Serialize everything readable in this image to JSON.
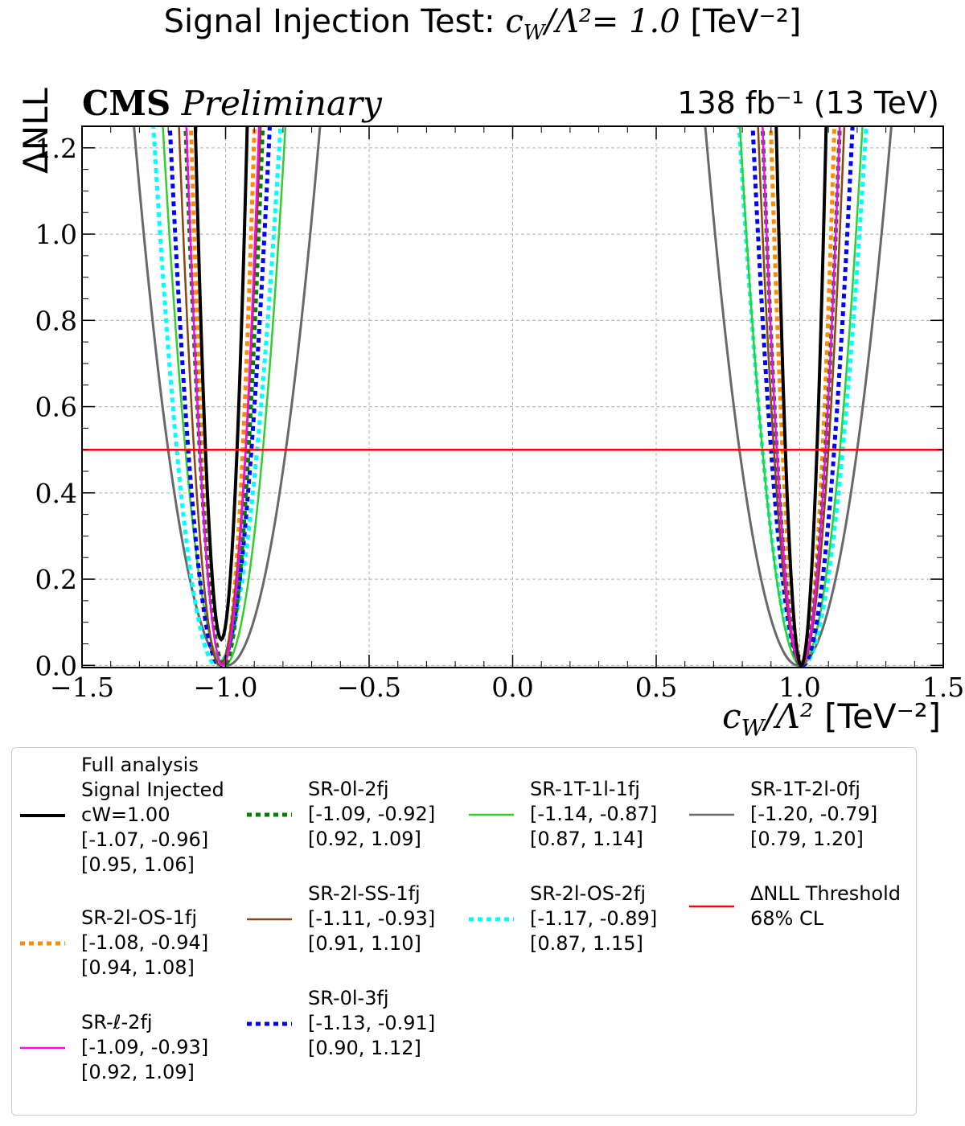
{
  "title": {
    "prefix": "Signal Injection Test: ",
    "math": "c",
    "math_sub": "W",
    "math_rest": "/Λ²= 1.0",
    "unit": " [TeV⁻²]"
  },
  "experiment": {
    "bold": "CMS",
    "italic": "Preliminary"
  },
  "luminosity": "138 fb⁻¹ (13 TeV)",
  "chart_data": {
    "type": "line",
    "xlabel": "c_W/Λ² [TeV⁻²]",
    "ylabel": "ΔNLL",
    "xlim": [
      -1.5,
      1.5
    ],
    "ylim": [
      -0.005,
      1.25
    ],
    "xticks": [
      "−1.5",
      "−1.0",
      "−0.5",
      "0.0",
      "0.5",
      "1.0",
      "1.5"
    ],
    "yticks": [
      "0.0",
      "0.2",
      "0.4",
      "0.6",
      "0.8",
      "1.0",
      "1.2"
    ],
    "grid": true,
    "threshold": {
      "y": 0.5,
      "label": "ΔNLL Threshold 68% CL",
      "color": "#ff0000"
    },
    "series": [
      {
        "name": "Full analysis Signal Injected cW=1.00",
        "color": "#000000",
        "style": "solid",
        "width": 4,
        "interval_lo": [
          -1.07,
          -0.96
        ],
        "interval_hi": [
          0.95,
          1.06
        ],
        "min_lo": 0.06,
        "min_hi": 0.0
      },
      {
        "name": "SR-0l-2fj",
        "color": "#008000",
        "style": "dotted",
        "width": 5,
        "interval_lo": [
          -1.09,
          -0.92
        ],
        "interval_hi": [
          0.92,
          1.09
        ],
        "min_lo": 0.0,
        "min_hi": 0.0
      },
      {
        "name": "SR-1T-1l-1fj",
        "color": "#32cd32",
        "style": "solid",
        "width": 2.5,
        "interval_lo": [
          -1.14,
          -0.87
        ],
        "interval_hi": [
          0.87,
          1.14
        ],
        "min_lo": 0.0,
        "min_hi": 0.0
      },
      {
        "name": "SR-1T-2l-0fj",
        "color": "#696969",
        "style": "solid",
        "width": 3,
        "interval_lo": [
          -1.2,
          -0.79
        ],
        "interval_hi": [
          0.79,
          1.2
        ],
        "min_lo": 0.0,
        "min_hi": 0.0
      },
      {
        "name": "SR-2l-OS-1fj",
        "color": "#ff8c00",
        "style": "dotted",
        "width": 5,
        "interval_lo": [
          -1.08,
          -0.94
        ],
        "interval_hi": [
          0.94,
          1.08
        ],
        "min_lo": 0.0,
        "min_hi": 0.0
      },
      {
        "name": "SR-2l-SS-1fj",
        "color": "#8b4513",
        "style": "solid",
        "width": 2.5,
        "interval_lo": [
          -1.11,
          -0.93
        ],
        "interval_hi": [
          0.91,
          1.1
        ],
        "min_lo": 0.0,
        "min_hi": 0.0
      },
      {
        "name": "SR-2l-OS-2fj",
        "color": "#00ffff",
        "style": "dotted",
        "width": 5,
        "interval_lo": [
          -1.17,
          -0.89
        ],
        "interval_hi": [
          0.87,
          1.15
        ],
        "min_lo": 0.0,
        "min_hi": 0.0
      },
      {
        "name": "SR-ℓ-2fj",
        "color": "#ff00ff",
        "style": "solid",
        "width": 2.5,
        "interval_lo": [
          -1.09,
          -0.93
        ],
        "interval_hi": [
          0.92,
          1.09
        ],
        "min_lo": 0.0,
        "min_hi": 0.0
      },
      {
        "name": "SR-0l-3fj",
        "color": "#0000ff",
        "style": "dotted",
        "width": 5,
        "interval_lo": [
          -1.13,
          -0.91
        ],
        "interval_hi": [
          0.9,
          1.12
        ],
        "min_lo": 0.0,
        "min_hi": 0.0
      }
    ]
  },
  "legend": {
    "entries": [
      {
        "lines": [
          "Full analysis",
          "Signal Injected",
          "cW=1.00",
          "[-1.07, -0.96]",
          "[0.95, 1.06]"
        ],
        "color": "#000000",
        "style": "solid"
      },
      {
        "lines": [
          "SR-0l-2fj",
          "[-1.09, -0.92]",
          "[0.92, 1.09]"
        ],
        "color": "#008000",
        "style": "dotted"
      },
      {
        "lines": [
          "SR-1T-1l-1fj",
          "[-1.14, -0.87]",
          "[0.87, 1.14]"
        ],
        "color": "#32cd32",
        "style": "solid"
      },
      {
        "lines": [
          "SR-1T-2l-0fj",
          "[-1.20, -0.79]",
          "[0.79, 1.20]"
        ],
        "color": "#696969",
        "style": "solid"
      },
      {
        "lines": [
          "SR-2l-OS-1fj",
          "[-1.08, -0.94]",
          "[0.94, 1.08]"
        ],
        "color": "#ff8c00",
        "style": "dotted"
      },
      {
        "lines": [
          "SR-2l-SS-1fj",
          "[-1.11, -0.93]",
          "[0.91, 1.10]"
        ],
        "color": "#8b4513",
        "style": "solid"
      },
      {
        "lines": [
          "SR-2l-OS-2fj",
          "[-1.17, -0.89]",
          "[0.87, 1.15]"
        ],
        "color": "#00ffff",
        "style": "dotted"
      },
      {
        "lines": [
          "ΔNLL Threshold",
          "68% CL"
        ],
        "color": "#ff0000",
        "style": "solid"
      },
      {
        "lines": [
          "SR-ℓ-2fj",
          "[-1.09, -0.93]",
          "[0.92, 1.09]"
        ],
        "color": "#ff00ff",
        "style": "solid"
      },
      {
        "lines": [
          "SR-0l-3fj",
          "[-1.13, -0.91]",
          "[0.90, 1.12]"
        ],
        "color": "#0000ff",
        "style": "dotted"
      }
    ]
  }
}
